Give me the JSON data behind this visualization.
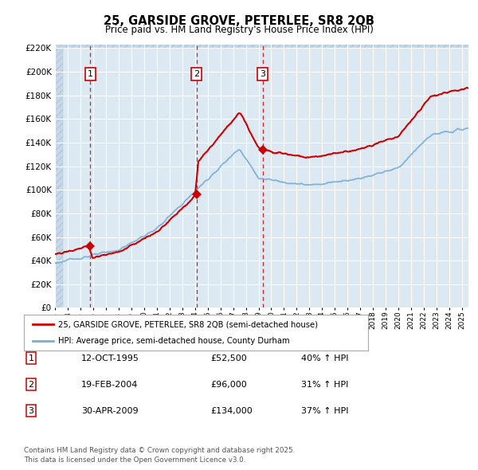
{
  "title": "25, GARSIDE GROVE, PETERLEE, SR8 2QB",
  "subtitle": "Price paid vs. HM Land Registry's House Price Index (HPI)",
  "ylabel_ticks": [
    0,
    20000,
    40000,
    60000,
    80000,
    100000,
    120000,
    140000,
    160000,
    180000,
    200000,
    220000
  ],
  "sales": [
    {
      "date_num": 1995.78,
      "price": 52500,
      "label": "1"
    },
    {
      "date_num": 2004.13,
      "price": 96000,
      "label": "2"
    },
    {
      "date_num": 2009.33,
      "price": 134000,
      "label": "3"
    }
  ],
  "sale_dates": [
    "12-OCT-1995",
    "19-FEB-2004",
    "30-APR-2009"
  ],
  "sale_prices": [
    "£52,500",
    "£96,000",
    "£134,000"
  ],
  "sale_hpi": [
    "40% ↑ HPI",
    "31% ↑ HPI",
    "37% ↑ HPI"
  ],
  "legend_property": "25, GARSIDE GROVE, PETERLEE, SR8 2QB (semi-detached house)",
  "legend_hpi": "HPI: Average price, semi-detached house, County Durham",
  "footnote1": "Contains HM Land Registry data © Crown copyright and database right 2025.",
  "footnote2": "This data is licensed under the Open Government Licence v3.0.",
  "line_color_property": "#cc0000",
  "line_color_hpi": "#7aadd4",
  "background_chart": "#dce8f2",
  "grid_color": "#ffffff",
  "xlim": [
    1993.0,
    2025.5
  ],
  "ylim_max": 220000
}
